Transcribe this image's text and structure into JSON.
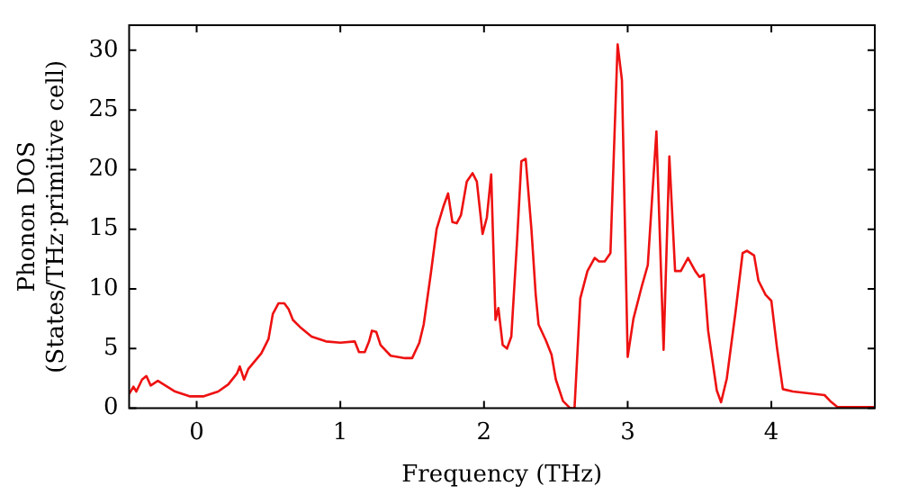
{
  "chart_data": {
    "type": "line",
    "xlabel": "Frequency (THz)",
    "ylabel": "Phonon DOS\n(States/THz·primitive cell)",
    "x": [
      -0.47,
      -0.44,
      -0.42,
      -0.38,
      -0.35,
      -0.32,
      -0.27,
      -0.23,
      -0.15,
      -0.05,
      0.05,
      0.15,
      0.22,
      0.28,
      0.3,
      0.33,
      0.36,
      0.45,
      0.5,
      0.53,
      0.57,
      0.61,
      0.64,
      0.67,
      0.72,
      0.8,
      0.9,
      1.0,
      1.1,
      1.13,
      1.17,
      1.2,
      1.22,
      1.25,
      1.28,
      1.35,
      1.45,
      1.5,
      1.55,
      1.58,
      1.63,
      1.67,
      1.72,
      1.75,
      1.78,
      1.81,
      1.84,
      1.88,
      1.92,
      1.95,
      1.99,
      2.02,
      2.05,
      2.08,
      2.1,
      2.13,
      2.16,
      2.19,
      2.23,
      2.26,
      2.29,
      2.33,
      2.36,
      2.38,
      2.43,
      2.47,
      2.5,
      2.55,
      2.6,
      2.63,
      2.67,
      2.72,
      2.77,
      2.8,
      2.84,
      2.88,
      2.93,
      2.96,
      3.0,
      3.04,
      3.1,
      3.14,
      3.2,
      3.25,
      3.29,
      3.33,
      3.37,
      3.42,
      3.47,
      3.5,
      3.53,
      3.56,
      3.62,
      3.65,
      3.69,
      3.75,
      3.8,
      3.83,
      3.88,
      3.91,
      3.96,
      4.0,
      4.04,
      4.08,
      4.15,
      4.37,
      4.41,
      4.46,
      4.72
    ],
    "series": [
      {
        "color": "#ee1111",
        "values": [
          1.2,
          1.8,
          1.4,
          2.4,
          2.7,
          1.9,
          2.3,
          2.0,
          1.4,
          1.0,
          1.0,
          1.4,
          2.0,
          2.9,
          3.5,
          2.4,
          3.3,
          4.6,
          5.8,
          7.9,
          8.8,
          8.8,
          8.3,
          7.4,
          6.8,
          6.0,
          5.6,
          5.5,
          5.6,
          4.7,
          4.7,
          5.6,
          6.5,
          6.4,
          5.3,
          4.4,
          4.2,
          4.2,
          5.5,
          7.0,
          11.3,
          15,
          17,
          18,
          15.6,
          15.5,
          16.2,
          19,
          19.7,
          19,
          14.6,
          16.0,
          19.6,
          7.4,
          8.4,
          5.3,
          5.0,
          6.0,
          14,
          20.7,
          20.9,
          15,
          9.5,
          7.0,
          5.7,
          4.5,
          2.4,
          0.6,
          0,
          0,
          9.2,
          11.5,
          12.6,
          12.3,
          12.3,
          13,
          30.5,
          27.5,
          4.3,
          7.5,
          10.3,
          12.0,
          23.2,
          4.9,
          21.1,
          11.5,
          11.5,
          12.6,
          11.5,
          11.0,
          11.2,
          6.5,
          1.5,
          0.5,
          2.5,
          8.0,
          13.0,
          13.2,
          12.8,
          10.7,
          9.5,
          9.0,
          5.0,
          1.6,
          1.4,
          1.1,
          0.6,
          0.1,
          0.1
        ]
      }
    ],
    "xlim": [
      -0.47,
      4.72
    ],
    "xticks": [
      0,
      1,
      2,
      3,
      4
    ],
    "ylim": [
      0,
      32.1
    ],
    "yticks": [
      0,
      5,
      10,
      15,
      20,
      25,
      30
    ],
    "grid": false,
    "legend": false,
    "marker": "none",
    "line_style": "solid"
  }
}
